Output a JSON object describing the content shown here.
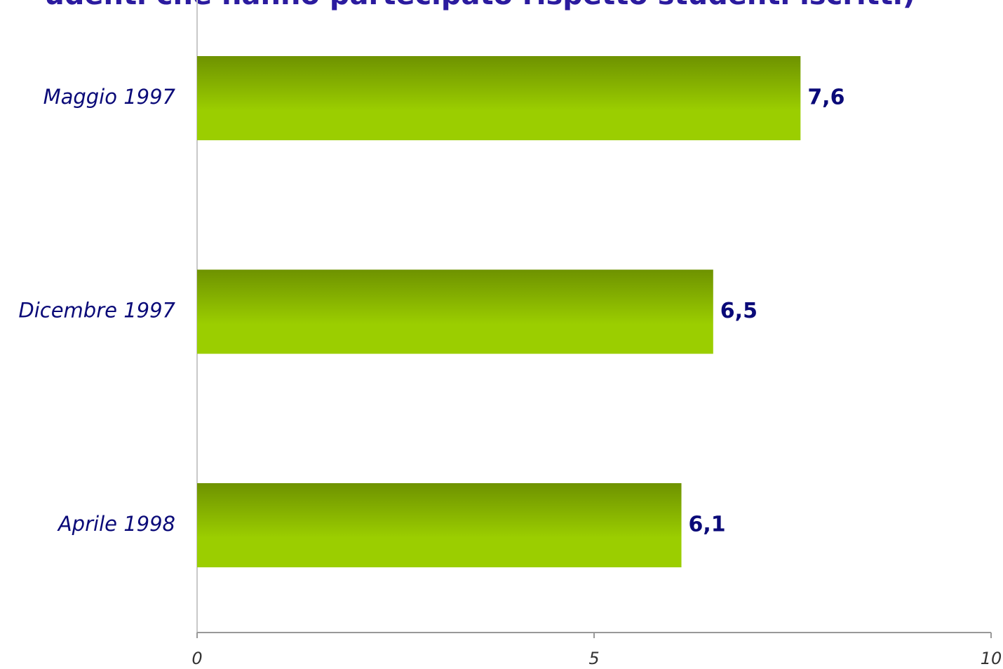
{
  "chart_data": {
    "type": "barh",
    "title": "udenti che hanno partecipato rispetto studenti iscritti)",
    "categories": [
      "Maggio 1997",
      "Dicembre 1997",
      "Aprile 1998"
    ],
    "values": [
      7.6,
      6.5,
      6.1
    ],
    "value_labels": [
      "7,6",
      "6,5",
      "6,1"
    ],
    "colors": [
      "#6e9200",
      "#9bce00"
    ],
    "xlim": [
      0,
      10
    ],
    "xticks": [
      0,
      5,
      10
    ]
  }
}
